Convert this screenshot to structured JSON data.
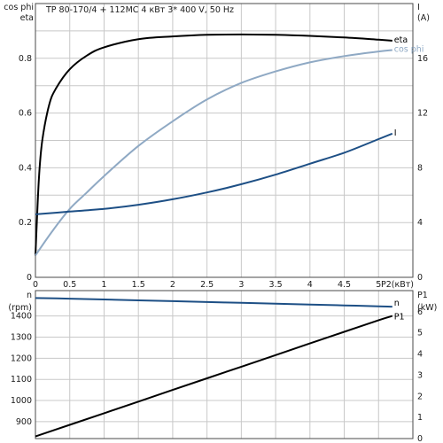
{
  "title": "TP 80-170/4 + 112MC    4 кВт   3* 400 V, 50 Hz",
  "chart_data": [
    {
      "type": "line",
      "panel": "upper",
      "title": "TP 80-170/4 + 112MC    4 кВт   3* 400 V, 50 Hz",
      "xlabel": "P2(кВт)",
      "ylabel_left": [
        "cos phi",
        "eta"
      ],
      "ylabel_right": [
        "I",
        "(A)"
      ],
      "xlim": [
        0,
        5.5
      ],
      "ylim_left": [
        0,
        1.0
      ],
      "ylim_right": [
        0,
        20
      ],
      "x_ticks": [
        "0",
        "0.5",
        "1",
        "1.5",
        "2",
        "2.5",
        "3",
        "3.5",
        "4",
        "4.5",
        "5"
      ],
      "y_left_ticks": [
        "0",
        "0.2",
        "0.4",
        "0.6",
        "0.8"
      ],
      "y_right_ticks": [
        "0",
        "4",
        "8",
        "12",
        "16"
      ],
      "grid": true,
      "series": [
        {
          "name": "eta",
          "axis": "left",
          "color": "#000000",
          "x": [
            0,
            0.05,
            0.1,
            0.2,
            0.3,
            0.5,
            0.75,
            1.0,
            1.5,
            2.0,
            2.5,
            3.0,
            3.5,
            4.0,
            4.5,
            5.0,
            5.2
          ],
          "y": [
            0.08,
            0.36,
            0.5,
            0.63,
            0.69,
            0.76,
            0.81,
            0.84,
            0.87,
            0.88,
            0.886,
            0.887,
            0.886,
            0.882,
            0.876,
            0.868,
            0.864
          ]
        },
        {
          "name": "cos phi",
          "axis": "left",
          "color": "#8fa9c4",
          "x": [
            0,
            0.25,
            0.5,
            0.75,
            1.0,
            1.5,
            2.0,
            2.5,
            3.0,
            3.5,
            4.0,
            4.5,
            5.0,
            5.2
          ],
          "y": [
            0.08,
            0.17,
            0.25,
            0.31,
            0.37,
            0.48,
            0.57,
            0.65,
            0.71,
            0.752,
            0.785,
            0.808,
            0.825,
            0.83
          ]
        },
        {
          "name": "I",
          "axis": "right",
          "color": "#1d4f85",
          "x": [
            0,
            0.5,
            1.0,
            1.5,
            2.0,
            2.5,
            3.0,
            3.5,
            4.0,
            4.5,
            5.0,
            5.2
          ],
          "y": [
            4.6,
            4.8,
            5.0,
            5.3,
            5.7,
            6.2,
            6.8,
            7.5,
            8.3,
            9.1,
            10.1,
            10.5
          ]
        }
      ]
    },
    {
      "type": "line",
      "panel": "lower",
      "ylabel_left": [
        "n",
        "(rpm)"
      ],
      "ylabel_right": [
        "P1",
        "(kW)"
      ],
      "xlim": [
        0,
        5.5
      ],
      "ylim_left": [
        820,
        1520
      ],
      "ylim_right": [
        0,
        7
      ],
      "y_left_ticks": [
        "900",
        "1000",
        "1100",
        "1200",
        "1300",
        "1400"
      ],
      "y_right_ticks": [
        "0",
        "1",
        "2",
        "3",
        "4",
        "5",
        "6"
      ],
      "grid": true,
      "series": [
        {
          "name": "n",
          "axis": "left",
          "color": "#1d4f85",
          "x": [
            0,
            0.5,
            1.0,
            1.5,
            2.0,
            2.5,
            3.0,
            3.5,
            4.0,
            4.5,
            5.0,
            5.2
          ],
          "y": [
            1485,
            1482,
            1478,
            1474,
            1470,
            1466,
            1462,
            1458,
            1454,
            1450,
            1446,
            1444
          ]
        },
        {
          "name": "P1",
          "axis": "right",
          "color": "#000000",
          "x": [
            0,
            0.5,
            1.0,
            1.5,
            2.0,
            2.5,
            3.0,
            3.5,
            4.0,
            4.5,
            5.0,
            5.2
          ],
          "y": [
            0.1,
            0.65,
            1.2,
            1.75,
            2.3,
            2.85,
            3.4,
            3.95,
            4.5,
            5.05,
            5.6,
            5.8
          ]
        }
      ]
    }
  ]
}
